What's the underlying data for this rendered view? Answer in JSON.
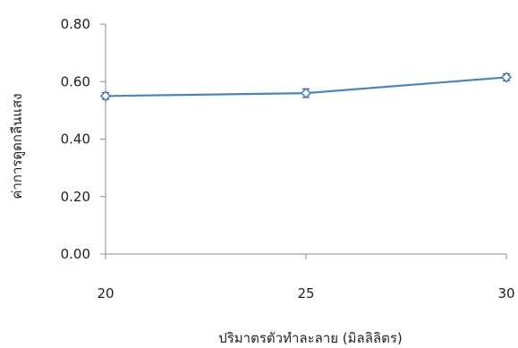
{
  "chart_data": {
    "type": "line",
    "title": "",
    "xlabel": "ปริมาตรตัวทำละลาย (มิลลิลิตร)",
    "ylabel": "ค่าการดูดกลืนแสง",
    "x": [
      20,
      25,
      30
    ],
    "x_tick_labels": [
      "20",
      "25",
      "30"
    ],
    "xlim": [
      20,
      30
    ],
    "ylim": [
      0,
      0.8
    ],
    "y_ticks": [
      0,
      0.2,
      0.4,
      0.6,
      0.8
    ],
    "y_tick_labels": [
      "0.00",
      "0.20",
      "0.40",
      "0.60",
      "0.80"
    ],
    "grid": false,
    "legend": "none",
    "series": [
      {
        "values": [
          0.55,
          0.56,
          0.615
        ],
        "error": [
          0.012,
          0.015,
          0.012
        ],
        "color": "#4f81bd",
        "marker": "diamond-open"
      }
    ]
  }
}
